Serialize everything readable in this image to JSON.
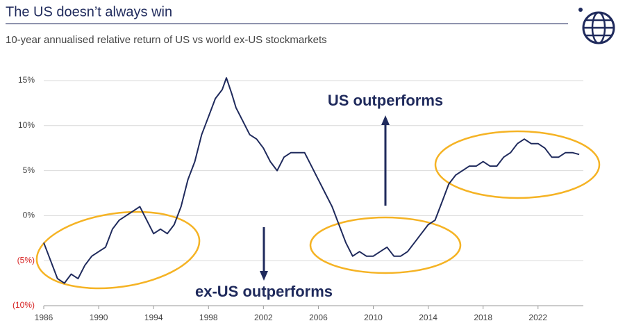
{
  "chart_data": {
    "type": "line",
    "title": "The US doesn’t always win",
    "subtitle": "10-year annualised relative return of US vs world ex-US stockmarkets",
    "annotations": [
      "US outperforms",
      "ex-US outperforms"
    ],
    "x": [
      1986.0,
      1986.5,
      1987.0,
      1987.5,
      1988.0,
      1988.5,
      1989.0,
      1989.5,
      1990.0,
      1990.5,
      1991.0,
      1991.5,
      1992.0,
      1992.5,
      1993.0,
      1993.5,
      1994.0,
      1994.5,
      1995.0,
      1995.5,
      1996.0,
      1996.5,
      1997.0,
      1997.5,
      1998.0,
      1998.5,
      1999.0,
      1999.3,
      1999.7,
      2000.0,
      2000.5,
      2001.0,
      2001.5,
      2002.0,
      2002.5,
      2003.0,
      2003.5,
      2004.0,
      2004.5,
      2005.0,
      2005.5,
      2006.0,
      2006.5,
      2007.0,
      2007.5,
      2008.0,
      2008.5,
      2009.0,
      2009.5,
      2010.0,
      2010.5,
      2011.0,
      2011.5,
      2012.0,
      2012.5,
      2013.0,
      2013.5,
      2014.0,
      2014.5,
      2015.0,
      2015.5,
      2016.0,
      2016.5,
      2017.0,
      2017.5,
      2018.0,
      2018.5,
      2019.0,
      2019.5,
      2020.0,
      2020.5,
      2021.0,
      2021.5,
      2022.0,
      2022.5,
      2023.0,
      2023.5,
      2024.0,
      2024.5,
      2025.0
    ],
    "series": [
      {
        "name": "US vs world ex-US",
        "color": "#1f2a5c",
        "values": [
          -3,
          -5,
          -7,
          -7.5,
          -6.5,
          -7,
          -5.5,
          -4.5,
          -4,
          -3.5,
          -1.5,
          -0.5,
          0,
          0.5,
          1,
          -0.5,
          -2,
          -1.5,
          -2,
          -1,
          1,
          4,
          6,
          9,
          11,
          13,
          14,
          15.3,
          13.5,
          12,
          10.5,
          9,
          8.5,
          7.5,
          6,
          5,
          6.5,
          7,
          7,
          7,
          5.5,
          4,
          2.5,
          1,
          -1,
          -3,
          -4.5,
          -4,
          -4.5,
          -4.5,
          -4,
          -3.5,
          -4.5,
          -4.5,
          -4,
          -3,
          -2,
          -1,
          -0.5,
          1.5,
          3.5,
          4.5,
          5,
          5.5,
          5.5,
          6,
          5.5,
          5.5,
          6.5,
          7,
          8,
          8.5,
          8,
          8,
          7.5,
          6.5,
          6.5,
          7,
          7,
          6.8
        ]
      }
    ],
    "xlim": [
      1986,
      2025.3
    ],
    "xticks": [
      1986,
      1990,
      1994,
      1998,
      2002,
      2006,
      2010,
      2014,
      2018,
      2022
    ],
    "ylim": [
      -10,
      15
    ],
    "yticks": [
      {
        "value": 15,
        "label": "15%"
      },
      {
        "value": 10,
        "label": "10%"
      },
      {
        "value": 5,
        "label": "5%"
      },
      {
        "value": 0,
        "label": "0%"
      },
      {
        "value": -5,
        "label": "(5%)"
      },
      {
        "value": -10,
        "label": "(10%)"
      }
    ],
    "grid": true
  }
}
